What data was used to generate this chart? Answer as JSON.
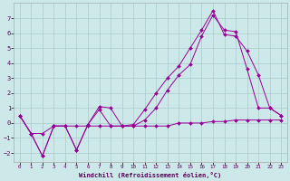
{
  "xlabel": "Windchill (Refroidissement éolien,°C)",
  "background_color": "#cce8e8",
  "grid_color": "#aacccc",
  "line_color": "#990099",
  "xlim": [
    -0.5,
    23.5
  ],
  "ylim": [
    -2.6,
    8.0
  ],
  "yticks": [
    -2,
    -1,
    0,
    1,
    2,
    3,
    4,
    5,
    6,
    7
  ],
  "xticks": [
    0,
    1,
    2,
    3,
    4,
    5,
    6,
    7,
    8,
    9,
    10,
    11,
    12,
    13,
    14,
    15,
    16,
    17,
    18,
    19,
    20,
    21,
    22,
    23
  ],
  "line1_x": [
    0,
    1,
    2,
    3,
    4,
    5,
    6,
    7,
    8,
    9,
    10,
    11,
    12,
    13,
    14,
    15,
    16,
    17,
    18,
    19,
    20,
    21,
    22,
    23
  ],
  "line1_y": [
    0.5,
    -0.7,
    -2.2,
    -0.2,
    -0.2,
    -1.8,
    -0.1,
    1.1,
    1.0,
    -0.2,
    -0.1,
    0.9,
    2.0,
    3.0,
    3.8,
    5.0,
    6.2,
    7.5,
    5.9,
    5.8,
    4.8,
    3.2,
    1.0,
    0.5
  ],
  "line2_x": [
    0,
    1,
    2,
    3,
    4,
    5,
    6,
    7,
    8,
    9,
    10,
    11,
    12,
    13,
    14,
    15,
    16,
    17,
    18,
    19,
    20,
    21,
    22,
    23
  ],
  "line2_y": [
    0.5,
    -0.7,
    -2.2,
    -0.2,
    -0.2,
    -1.8,
    -0.1,
    0.9,
    -0.2,
    -0.2,
    -0.2,
    0.2,
    1.0,
    2.2,
    3.2,
    3.9,
    5.8,
    7.2,
    6.2,
    6.1,
    3.6,
    1.0,
    1.0,
    0.5
  ],
  "line3_x": [
    0,
    1,
    2,
    3,
    4,
    5,
    6,
    7,
    8,
    9,
    10,
    11,
    12,
    13,
    14,
    15,
    16,
    17,
    18,
    19,
    20,
    21,
    22,
    23
  ],
  "line3_y": [
    0.5,
    -0.7,
    -0.7,
    -0.2,
    -0.2,
    -0.2,
    -0.2,
    -0.2,
    -0.2,
    -0.2,
    -0.2,
    -0.2,
    -0.2,
    -0.2,
    0.0,
    0.0,
    0.0,
    0.1,
    0.1,
    0.2,
    0.2,
    0.2,
    0.2,
    0.2
  ]
}
